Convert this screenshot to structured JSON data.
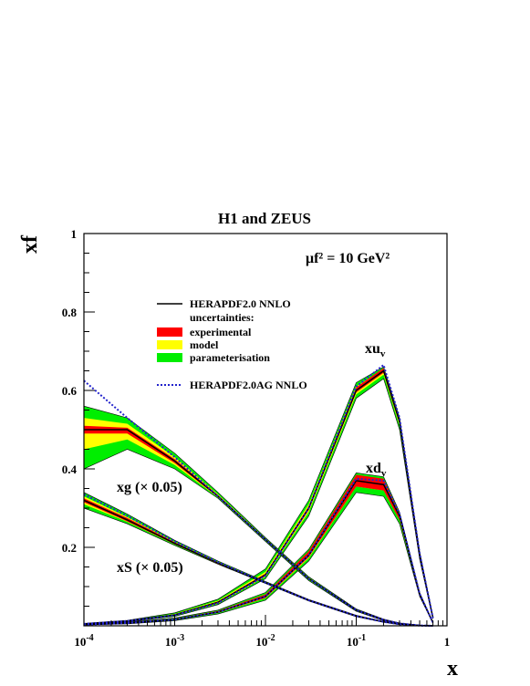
{
  "chart_data": {
    "type": "line",
    "title": "H1 and ZEUS",
    "xlabel": "x",
    "ylabel": "xf",
    "x_scale": "log",
    "xlim": [
      0.0001,
      1
    ],
    "ylim": [
      0,
      1
    ],
    "x_ticks": [
      "10^-4",
      "10^-3",
      "10^-2",
      "10^-1",
      "1"
    ],
    "y_ticks": [
      "0.2",
      "0.4",
      "0.6",
      "0.8",
      "1"
    ],
    "scale_annotation": "μf² = 10 GeV²",
    "legend": {
      "placement": "top-left",
      "central": "HERAPDF2.0 NNLO",
      "uncertainties_header": "uncertainties:",
      "bands": [
        {
          "name": "experimental",
          "color": "#ff0000"
        },
        {
          "name": "model",
          "color": "#ffff00"
        },
        {
          "name": "parameterisation",
          "color": "#00ee00"
        }
      ],
      "alternative": "HERAPDF2.0AG NNLO"
    },
    "colors": {
      "central": "#000000",
      "experimental": "#ff0000",
      "model": "#ffff00",
      "parameterisation": "#00ee00",
      "alternative": "#2222cc"
    },
    "curve_labels": {
      "xuv": {
        "text": "xu",
        "sub": "v"
      },
      "xdv": {
        "text": "xd",
        "sub": "v"
      },
      "xg": "xg (× 0.05)",
      "xS": "xS (× 0.05)"
    },
    "x": [
      0.0001,
      0.0003,
      0.001,
      0.003,
      0.01,
      0.03,
      0.1,
      0.2,
      0.3,
      0.5,
      0.7
    ],
    "series": [
      {
        "key": "xuv",
        "central": [
          0.005,
          0.012,
          0.028,
          0.06,
          0.13,
          0.3,
          0.6,
          0.65,
          0.52,
          0.18,
          0.02
        ],
        "param_lo": [
          0.004,
          0.01,
          0.024,
          0.054,
          0.12,
          0.28,
          0.58,
          0.63,
          0.5,
          0.17,
          0.018
        ],
        "param_hi": [
          0.006,
          0.014,
          0.033,
          0.068,
          0.145,
          0.32,
          0.62,
          0.66,
          0.53,
          0.19,
          0.022
        ],
        "exp_lo": [
          0.005,
          0.011,
          0.027,
          0.058,
          0.127,
          0.295,
          0.595,
          0.645,
          0.515,
          0.178,
          0.019
        ],
        "exp_hi": [
          0.005,
          0.013,
          0.029,
          0.062,
          0.133,
          0.305,
          0.608,
          0.657,
          0.525,
          0.183,
          0.021
        ],
        "alt": [
          0.005,
          0.012,
          0.027,
          0.058,
          0.128,
          0.3,
          0.61,
          0.665,
          0.53,
          0.185,
          0.02
        ]
      },
      {
        "key": "xdv",
        "central": [
          0.003,
          0.007,
          0.016,
          0.035,
          0.075,
          0.18,
          0.37,
          0.36,
          0.28,
          0.08,
          0.008
        ],
        "param_lo": [
          0.002,
          0.005,
          0.013,
          0.03,
          0.065,
          0.165,
          0.34,
          0.33,
          0.26,
          0.075,
          0.007
        ],
        "param_hi": [
          0.004,
          0.009,
          0.02,
          0.04,
          0.085,
          0.195,
          0.39,
          0.38,
          0.29,
          0.085,
          0.009
        ],
        "exp_lo": [
          0.003,
          0.006,
          0.015,
          0.033,
          0.071,
          0.175,
          0.355,
          0.345,
          0.27,
          0.077,
          0.0075
        ],
        "exp_hi": [
          0.003,
          0.008,
          0.018,
          0.038,
          0.08,
          0.19,
          0.385,
          0.375,
          0.285,
          0.083,
          0.0085
        ],
        "alt": [
          0.003,
          0.007,
          0.016,
          0.035,
          0.075,
          0.18,
          0.375,
          0.37,
          0.285,
          0.082,
          0.008
        ]
      },
      {
        "key": "xg",
        "central": [
          0.5,
          0.5,
          0.42,
          0.33,
          0.22,
          0.12,
          0.04,
          0.015,
          0.006,
          0.001,
          0.0
        ],
        "param_lo": [
          0.4,
          0.45,
          0.4,
          0.325,
          0.215,
          0.115,
          0.037,
          0.013,
          0.005,
          0.0008,
          0.0
        ],
        "param_hi": [
          0.56,
          0.53,
          0.44,
          0.34,
          0.225,
          0.125,
          0.043,
          0.017,
          0.007,
          0.0012,
          0.0
        ],
        "exp_lo": [
          0.49,
          0.49,
          0.415,
          0.328,
          0.218,
          0.118,
          0.039,
          0.014,
          0.0055,
          0.0009,
          0.0
        ],
        "exp_hi": [
          0.51,
          0.505,
          0.425,
          0.333,
          0.222,
          0.122,
          0.041,
          0.016,
          0.0065,
          0.0011,
          0.0
        ],
        "alt": [
          0.625,
          0.53,
          0.43,
          0.33,
          0.22,
          0.12,
          0.04,
          0.015,
          0.006,
          0.001,
          0.0
        ]
      },
      {
        "key": "xS",
        "central": [
          0.32,
          0.27,
          0.21,
          0.16,
          0.11,
          0.065,
          0.025,
          0.01,
          0.004,
          0.0005,
          0.0
        ],
        "param_lo": [
          0.3,
          0.26,
          0.205,
          0.157,
          0.108,
          0.063,
          0.023,
          0.009,
          0.0035,
          0.0004,
          0.0
        ],
        "param_hi": [
          0.34,
          0.285,
          0.218,
          0.165,
          0.113,
          0.067,
          0.027,
          0.011,
          0.0045,
          0.0006,
          0.0
        ],
        "exp_lo": [
          0.315,
          0.266,
          0.208,
          0.158,
          0.109,
          0.064,
          0.024,
          0.0095,
          0.0038,
          0.00045,
          0.0
        ],
        "exp_hi": [
          0.325,
          0.275,
          0.213,
          0.162,
          0.111,
          0.066,
          0.026,
          0.0105,
          0.0042,
          0.00055,
          0.0
        ],
        "alt": [
          0.335,
          0.28,
          0.215,
          0.162,
          0.11,
          0.065,
          0.025,
          0.01,
          0.004,
          0.0005,
          0.0
        ]
      }
    ]
  }
}
